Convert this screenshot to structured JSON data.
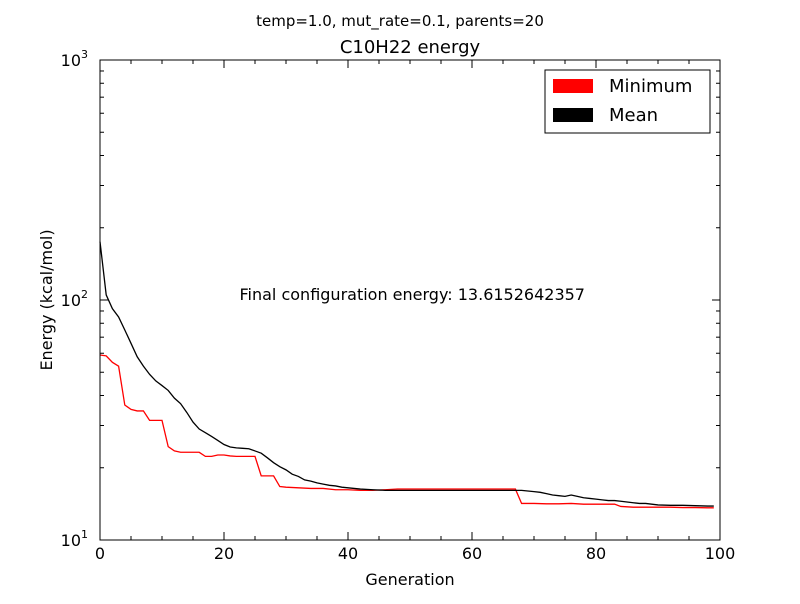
{
  "chart_data": {
    "type": "line",
    "suptitle": "temp=1.0, mut_rate=0.1, parents=20",
    "title": "C10H22 energy",
    "xlabel": "Generation",
    "ylabel": "Energy (kcal/mol)",
    "xlim": [
      0,
      100
    ],
    "ylim": [
      10,
      1000
    ],
    "yscale": "log",
    "x_ticks": [
      0,
      20,
      40,
      60,
      80,
      100
    ],
    "y_ticks": [
      {
        "value": 10,
        "base": "10",
        "exp": "1"
      },
      {
        "value": 100,
        "base": "10",
        "exp": "2"
      },
      {
        "value": 1000,
        "base": "10",
        "exp": "3"
      }
    ],
    "grid": false,
    "legend": "top-right",
    "annotation": "Final configuration energy: 13.6152642357",
    "annotation_pos": {
      "x": 22.5,
      "y": 100
    },
    "series": [
      {
        "name": "Minimum",
        "color": "#ff0000",
        "points": [
          [
            0,
            59
          ],
          [
            1,
            58.5
          ],
          [
            2,
            55
          ],
          [
            3,
            53
          ],
          [
            4,
            36.5
          ],
          [
            5,
            35
          ],
          [
            6,
            34.5
          ],
          [
            7,
            34.5
          ],
          [
            8,
            31.5
          ],
          [
            9,
            31.5
          ],
          [
            10,
            31.5
          ],
          [
            11,
            24.5
          ],
          [
            12,
            23.5
          ],
          [
            13,
            23.2
          ],
          [
            14,
            23.2
          ],
          [
            15,
            23.2
          ],
          [
            16,
            23.2
          ],
          [
            17,
            22.3
          ],
          [
            18,
            22.3
          ],
          [
            19,
            22.6
          ],
          [
            20,
            22.6
          ],
          [
            21,
            22.4
          ],
          [
            22,
            22.3
          ],
          [
            23,
            22.3
          ],
          [
            24,
            22.3
          ],
          [
            25,
            22.3
          ],
          [
            26,
            18.5
          ],
          [
            27,
            18.5
          ],
          [
            28,
            18.5
          ],
          [
            29,
            16.7
          ],
          [
            30,
            16.6
          ],
          [
            32,
            16.5
          ],
          [
            34,
            16.4
          ],
          [
            36,
            16.4
          ],
          [
            38,
            16.2
          ],
          [
            40,
            16.2
          ],
          [
            42,
            16.1
          ],
          [
            44,
            16.1
          ],
          [
            46,
            16.2
          ],
          [
            48,
            16.3
          ],
          [
            50,
            16.3
          ],
          [
            52,
            16.3
          ],
          [
            54,
            16.3
          ],
          [
            56,
            16.3
          ],
          [
            58,
            16.3
          ],
          [
            60,
            16.3
          ],
          [
            62,
            16.3
          ],
          [
            64,
            16.3
          ],
          [
            66,
            16.3
          ],
          [
            67,
            16.3
          ],
          [
            68,
            14.2
          ],
          [
            70,
            14.2
          ],
          [
            72,
            14.15
          ],
          [
            74,
            14.15
          ],
          [
            76,
            14.2
          ],
          [
            78,
            14.1
          ],
          [
            80,
            14.1
          ],
          [
            82,
            14.1
          ],
          [
            83,
            14.1
          ],
          [
            84,
            13.8
          ],
          [
            86,
            13.7
          ],
          [
            88,
            13.7
          ],
          [
            90,
            13.7
          ],
          [
            92,
            13.7
          ],
          [
            94,
            13.65
          ],
          [
            96,
            13.65
          ],
          [
            98,
            13.62
          ],
          [
            99,
            13.62
          ]
        ]
      },
      {
        "name": "Mean",
        "color": "#000000",
        "points": [
          [
            0,
            175
          ],
          [
            1,
            105
          ],
          [
            2,
            92
          ],
          [
            3,
            85
          ],
          [
            4,
            75
          ],
          [
            5,
            66
          ],
          [
            6,
            58
          ],
          [
            7,
            53
          ],
          [
            8,
            49
          ],
          [
            9,
            46
          ],
          [
            10,
            44
          ],
          [
            11,
            42
          ],
          [
            12,
            39
          ],
          [
            13,
            37
          ],
          [
            14,
            34
          ],
          [
            15,
            31
          ],
          [
            16,
            29
          ],
          [
            17,
            28
          ],
          [
            18,
            27
          ],
          [
            19,
            26
          ],
          [
            20,
            25
          ],
          [
            21,
            24.4
          ],
          [
            22,
            24.2
          ],
          [
            23,
            24.1
          ],
          [
            24,
            24
          ],
          [
            25,
            23.5
          ],
          [
            26,
            23
          ],
          [
            27,
            22
          ],
          [
            28,
            21
          ],
          [
            29,
            20.2
          ],
          [
            30,
            19.6
          ],
          [
            31,
            18.8
          ],
          [
            32,
            18.4
          ],
          [
            33,
            17.8
          ],
          [
            34,
            17.6
          ],
          [
            35,
            17.3
          ],
          [
            36,
            17.1
          ],
          [
            37,
            16.9
          ],
          [
            38,
            16.8
          ],
          [
            39,
            16.6
          ],
          [
            40,
            16.5
          ],
          [
            42,
            16.3
          ],
          [
            44,
            16.2
          ],
          [
            46,
            16.1
          ],
          [
            48,
            16.1
          ],
          [
            50,
            16.1
          ],
          [
            52,
            16.1
          ],
          [
            54,
            16.1
          ],
          [
            56,
            16.1
          ],
          [
            58,
            16.1
          ],
          [
            60,
            16.1
          ],
          [
            62,
            16.1
          ],
          [
            64,
            16.1
          ],
          [
            66,
            16.1
          ],
          [
            68,
            16.1
          ],
          [
            70,
            15.9
          ],
          [
            71,
            15.8
          ],
          [
            72,
            15.6
          ],
          [
            73,
            15.4
          ],
          [
            74,
            15.3
          ],
          [
            75,
            15.2
          ],
          [
            76,
            15.4
          ],
          [
            77,
            15.2
          ],
          [
            78,
            15
          ],
          [
            79,
            14.9
          ],
          [
            80,
            14.8
          ],
          [
            81,
            14.7
          ],
          [
            82,
            14.6
          ],
          [
            83,
            14.6
          ],
          [
            84,
            14.5
          ],
          [
            85,
            14.4
          ],
          [
            86,
            14.3
          ],
          [
            87,
            14.2
          ],
          [
            88,
            14.2
          ],
          [
            89,
            14.1
          ],
          [
            90,
            14
          ],
          [
            92,
            13.95
          ],
          [
            94,
            13.95
          ],
          [
            96,
            13.9
          ],
          [
            98,
            13.85
          ],
          [
            99,
            13.85
          ]
        ]
      }
    ]
  }
}
